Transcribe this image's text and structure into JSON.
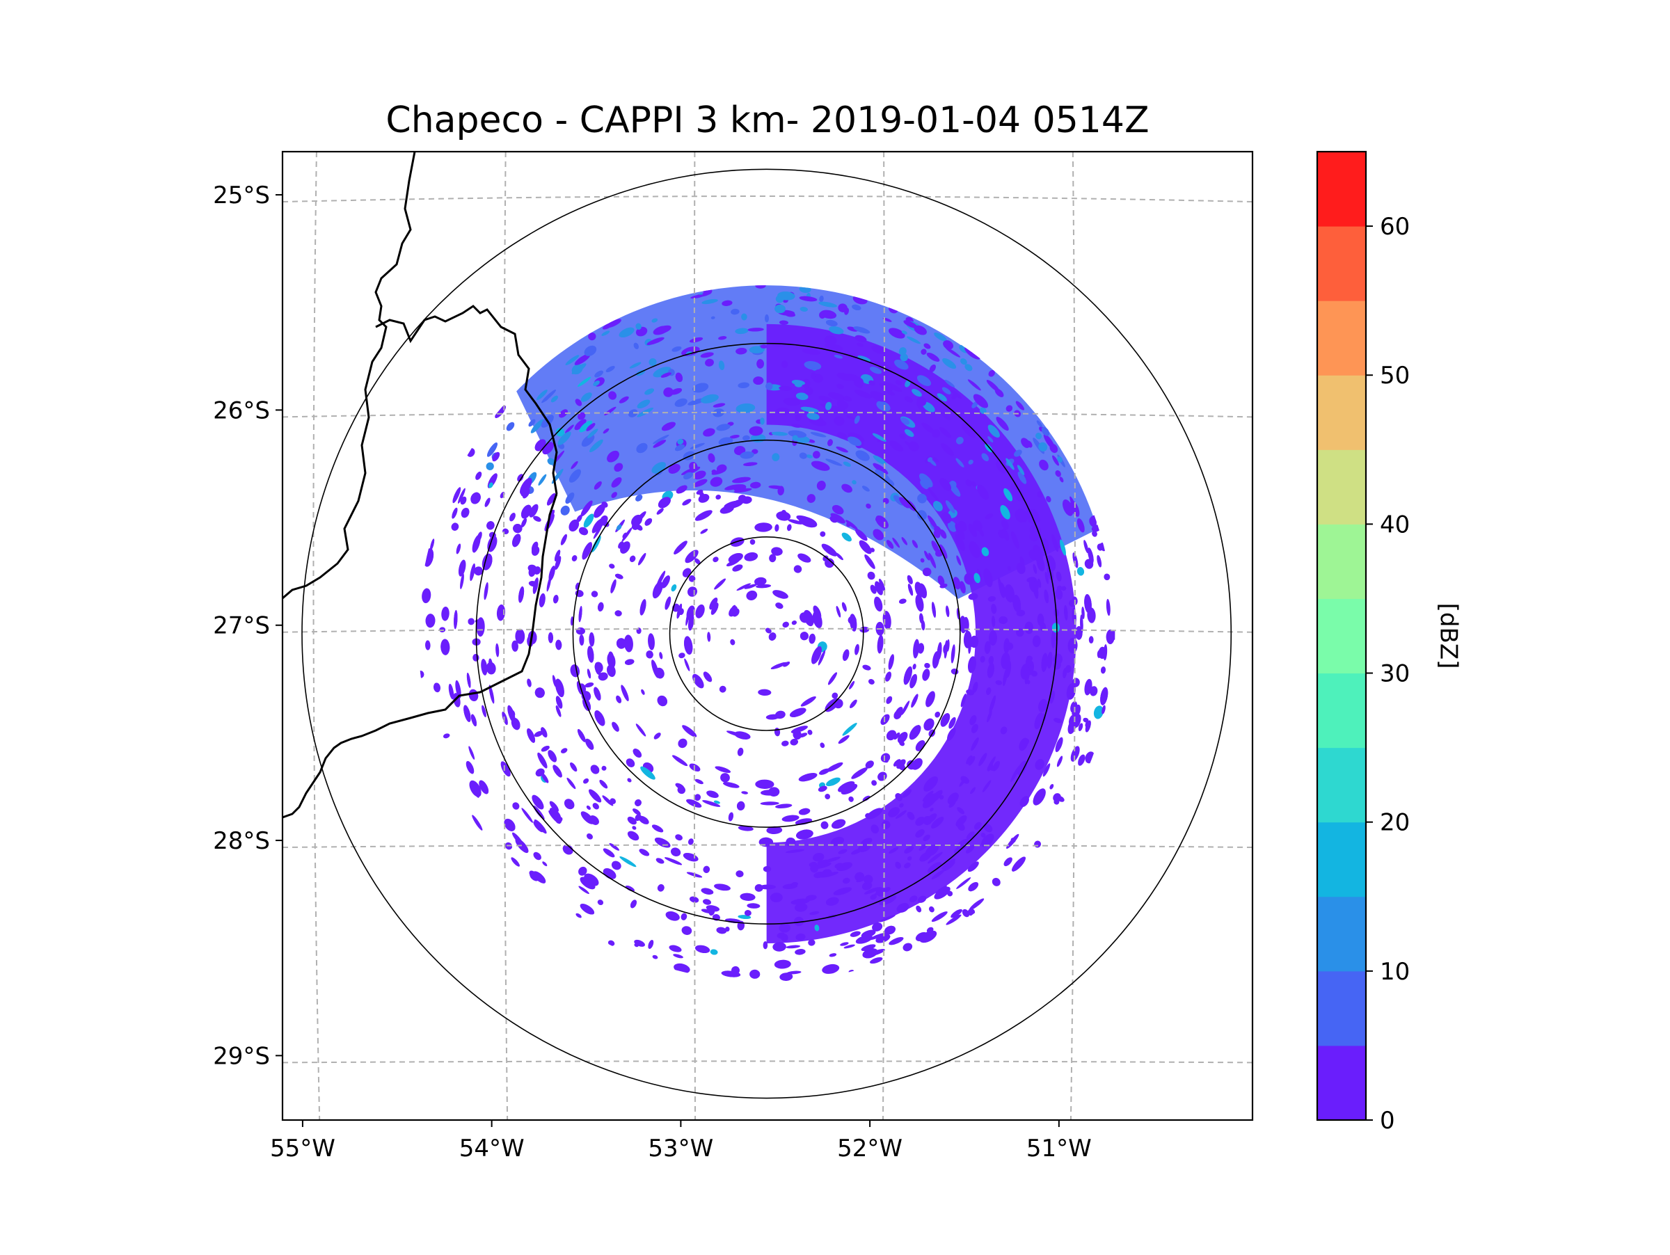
{
  "chart_data": {
    "type": "heatmap",
    "title": "Chapeco - CAPPI 3 km- 2019-01-04 0514Z",
    "projection": "map",
    "xlim": [
      -55.18,
      -50.05
    ],
    "ylim": [
      -29.28,
      -24.78
    ],
    "x_ticks": [
      {
        "value": -55,
        "label": "55°W"
      },
      {
        "value": -54,
        "label": "54°W"
      },
      {
        "value": -53,
        "label": "53°W"
      },
      {
        "value": -52,
        "label": "52°W"
      },
      {
        "value": -51,
        "label": "51°W"
      }
    ],
    "y_ticks": [
      {
        "value": -25,
        "label": "25°S"
      },
      {
        "value": -26,
        "label": "26°S"
      },
      {
        "value": -27,
        "label": "27°S"
      },
      {
        "value": -28,
        "label": "28°S"
      },
      {
        "value": -29,
        "label": "29°S"
      }
    ],
    "grid": true,
    "radar_site": {
      "name": "Chapeco",
      "lon": -52.62,
      "lat": -27.02
    },
    "range_rings_km": [
      50,
      100,
      150,
      240
    ],
    "data_extent_km": 180,
    "colorbar": {
      "label": "[dBZ]",
      "min": 0,
      "max": 65,
      "ticks": [
        0,
        10,
        20,
        30,
        40,
        50,
        60
      ],
      "tick_labels": [
        "0",
        "10",
        "20",
        "30",
        "40",
        "50",
        "60"
      ],
      "levels": [
        0,
        5,
        10,
        15,
        20,
        25,
        30,
        35,
        40,
        45,
        50,
        55,
        60,
        65
      ],
      "colors": [
        "#6a1efc",
        "#4665f4",
        "#2a90e8",
        "#13b5e1",
        "#2ed8d0",
        "#4ef1bb",
        "#7afcaa",
        "#9ef595",
        "#cfe084",
        "#f0c06f",
        "#fe9555",
        "#fe5f3b",
        "#ff1c1c"
      ]
    },
    "reflectivity_summary": "Mostly 0–5 dBZ echoes over the full domain; 5–15 dBZ in the northern sector; sparse small echoes near radar"
  }
}
